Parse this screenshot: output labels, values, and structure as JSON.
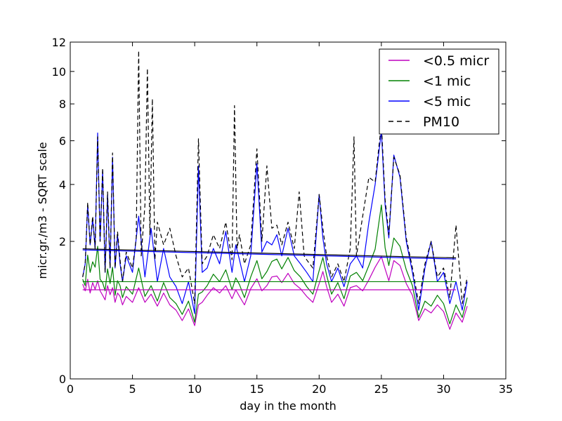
{
  "chart_data": {
    "type": "line",
    "title": "",
    "xlabel": "day in the month",
    "ylabel": "micr.gr./m3 - SQRT scale",
    "xlim": [
      0,
      35
    ],
    "ylim": [
      0,
      12
    ],
    "yscale": "sqrt",
    "grid": false,
    "legend_position": "top-right",
    "x_ticks": [
      0,
      5,
      10,
      15,
      20,
      25,
      30,
      35
    ],
    "y_ticks": [
      0,
      2,
      4,
      6,
      8,
      10,
      12
    ],
    "series": [
      {
        "name": "<0.5 micr",
        "color": "#bf00bf",
        "dash": "solid",
        "x": [
          1.0,
          1.2,
          1.4,
          1.6,
          1.8,
          2.0,
          2.2,
          2.4,
          2.6,
          2.8,
          3.0,
          3.2,
          3.4,
          3.6,
          3.8,
          4.0,
          4.2,
          4.5,
          5.0,
          5.5,
          6.0,
          6.5,
          7.0,
          7.5,
          8.0,
          8.5,
          9.0,
          9.5,
          10.0,
          10.3,
          10.6,
          11.0,
          11.5,
          12.0,
          12.5,
          13.0,
          13.3,
          13.6,
          14.0,
          14.5,
          15.0,
          15.4,
          15.8,
          16.2,
          16.6,
          17.0,
          17.5,
          18.0,
          18.5,
          19.0,
          19.5,
          20.0,
          20.3,
          20.6,
          21.0,
          21.5,
          22.0,
          22.5,
          23.0,
          23.5,
          24.0,
          24.5,
          25.0,
          25.3,
          25.6,
          26.0,
          26.5,
          27.0,
          27.5,
          28.0,
          28.5,
          29.0,
          29.5,
          30.0,
          30.5,
          31.0,
          31.5,
          31.9
        ],
        "y": [
          0.95,
          0.82,
          1.05,
          0.78,
          0.98,
          0.85,
          1.02,
          0.82,
          0.74,
          0.66,
          0.92,
          0.75,
          0.88,
          0.62,
          0.78,
          0.72,
          0.58,
          0.72,
          0.62,
          0.88,
          0.62,
          0.76,
          0.56,
          0.78,
          0.58,
          0.5,
          0.36,
          0.52,
          0.3,
          0.58,
          0.62,
          0.74,
          0.88,
          0.78,
          0.92,
          0.68,
          0.84,
          0.72,
          0.58,
          0.86,
          1.06,
          0.82,
          0.92,
          1.1,
          1.12,
          0.98,
          1.18,
          0.96,
          0.86,
          0.72,
          0.62,
          0.96,
          1.22,
          0.9,
          0.62,
          0.76,
          0.56,
          0.88,
          0.92,
          0.82,
          1.04,
          1.32,
          1.58,
          1.28,
          1.02,
          1.48,
          1.36,
          0.96,
          0.74,
          0.36,
          0.52,
          0.46,
          0.58,
          0.48,
          0.26,
          0.46,
          0.34,
          0.56
        ]
      },
      {
        "name": "<1 mic",
        "color": "#008000",
        "dash": "solid",
        "x": [
          1.0,
          1.2,
          1.4,
          1.6,
          1.8,
          2.0,
          2.2,
          2.4,
          2.6,
          2.8,
          3.0,
          3.2,
          3.4,
          3.6,
          3.8,
          4.0,
          4.2,
          4.5,
          5.0,
          5.5,
          6.0,
          6.5,
          7.0,
          7.5,
          8.0,
          8.5,
          9.0,
          9.5,
          10.0,
          10.3,
          10.6,
          11.0,
          11.5,
          12.0,
          12.5,
          13.0,
          13.3,
          13.6,
          14.0,
          14.5,
          15.0,
          15.4,
          15.8,
          16.2,
          16.6,
          17.0,
          17.5,
          18.0,
          18.5,
          19.0,
          19.5,
          20.0,
          20.3,
          20.6,
          21.0,
          21.5,
          22.0,
          22.5,
          23.0,
          23.5,
          24.0,
          24.5,
          25.0,
          25.3,
          25.6,
          26.0,
          26.5,
          27.0,
          27.5,
          28.0,
          28.5,
          29.0,
          29.5,
          30.0,
          30.5,
          31.0,
          31.5,
          31.9
        ],
        "y": [
          1.05,
          0.92,
          1.62,
          1.2,
          1.45,
          1.32,
          1.86,
          1.05,
          0.98,
          0.82,
          1.28,
          0.96,
          1.32,
          0.74,
          1.02,
          0.92,
          0.7,
          0.9,
          0.76,
          1.3,
          0.72,
          0.92,
          0.64,
          0.98,
          0.7,
          0.6,
          0.44,
          0.64,
          0.34,
          0.76,
          0.8,
          0.92,
          1.16,
          1.0,
          1.26,
          0.84,
          1.08,
          0.94,
          0.7,
          1.1,
          1.48,
          1.06,
          1.22,
          1.46,
          1.52,
          1.28,
          1.56,
          1.24,
          1.1,
          0.9,
          0.76,
          1.24,
          1.56,
          1.14,
          0.76,
          0.98,
          0.68,
          1.12,
          1.2,
          1.02,
          1.36,
          1.78,
          3.2,
          1.82,
          1.36,
          2.1,
          1.86,
          1.26,
          0.92,
          0.4,
          0.64,
          0.56,
          0.74,
          0.6,
          0.32,
          0.58,
          0.4,
          0.7
        ]
      },
      {
        "name": "<5 mic",
        "color": "#0000ff",
        "dash": "solid",
        "x": [
          1.0,
          1.2,
          1.4,
          1.6,
          1.8,
          2.0,
          2.2,
          2.4,
          2.6,
          2.8,
          3.0,
          3.2,
          3.4,
          3.6,
          3.8,
          4.0,
          4.2,
          4.5,
          5.0,
          5.5,
          6.0,
          6.5,
          7.0,
          7.5,
          8.0,
          8.5,
          9.0,
          9.5,
          10.0,
          10.3,
          10.6,
          11.0,
          11.5,
          12.0,
          12.5,
          13.0,
          13.3,
          13.6,
          14.0,
          14.5,
          15.0,
          15.4,
          15.8,
          16.2,
          16.6,
          17.0,
          17.5,
          18.0,
          18.5,
          19.0,
          19.5,
          20.0,
          20.3,
          20.6,
          21.0,
          21.5,
          22.0,
          22.5,
          23.0,
          23.5,
          24.0,
          24.5,
          25.0,
          25.3,
          25.6,
          26.0,
          26.5,
          27.0,
          27.5,
          28.0,
          28.5,
          29.0,
          29.5,
          30.0,
          30.5,
          31.0,
          31.5,
          31.9
        ],
        "y": [
          1.1,
          1.4,
          3.2,
          1.9,
          2.7,
          1.8,
          6.4,
          2.0,
          4.6,
          1.2,
          3.6,
          1.3,
          5.2,
          1.3,
          2.2,
          1.4,
          1.0,
          1.6,
          1.2,
          2.8,
          1.1,
          2.4,
          1.0,
          1.8,
          1.1,
          0.9,
          0.6,
          1.0,
          0.45,
          4.8,
          1.2,
          1.3,
          1.8,
          1.4,
          2.3,
          1.2,
          1.9,
          1.5,
          1.0,
          1.6,
          4.9,
          1.7,
          2.0,
          1.9,
          2.2,
          1.6,
          2.4,
          1.6,
          1.4,
          1.2,
          1.0,
          3.6,
          2.1,
          1.4,
          1.0,
          1.3,
          0.9,
          1.4,
          1.6,
          1.3,
          2.6,
          4.0,
          6.5,
          3.2,
          2.1,
          5.3,
          4.3,
          2.0,
          1.2,
          0.5,
          1.3,
          2.0,
          1.0,
          1.2,
          0.6,
          1.0,
          0.5,
          1.0
        ]
      },
      {
        "name": "PM10",
        "color": "#000000",
        "dash": "dashed",
        "x": [
          1.0,
          1.2,
          1.4,
          1.6,
          1.8,
          2.0,
          2.2,
          2.4,
          2.6,
          2.8,
          3.0,
          3.2,
          3.4,
          3.6,
          3.8,
          4.0,
          4.2,
          4.5,
          5.0,
          5.3,
          5.5,
          5.7,
          6.0,
          6.2,
          6.4,
          6.6,
          6.8,
          7.0,
          7.5,
          8.0,
          8.5,
          9.0,
          9.5,
          10.0,
          10.3,
          10.6,
          11.0,
          11.5,
          12.0,
          12.5,
          13.0,
          13.2,
          13.4,
          13.6,
          14.0,
          14.5,
          15.0,
          15.4,
          15.8,
          16.2,
          16.6,
          17.0,
          17.5,
          18.0,
          18.4,
          18.8,
          19.0,
          19.5,
          20.0,
          20.3,
          20.6,
          21.0,
          21.5,
          22.0,
          22.5,
          22.8,
          23.0,
          23.5,
          24.0,
          24.5,
          25.0,
          25.3,
          25.6,
          26.0,
          26.5,
          27.0,
          27.5,
          28.0,
          28.5,
          29.0,
          29.5,
          30.0,
          30.5,
          31.0,
          31.5,
          31.9
        ],
        "y": [
          1.1,
          1.4,
          3.3,
          1.9,
          2.8,
          1.8,
          6.2,
          2.0,
          4.7,
          1.2,
          3.7,
          1.3,
          5.4,
          1.3,
          2.3,
          1.5,
          1.0,
          1.7,
          1.3,
          2.1,
          11.4,
          1.6,
          3.2,
          10.2,
          2.2,
          8.3,
          1.5,
          2.6,
          1.9,
          2.4,
          1.6,
          1.1,
          1.3,
          0.6,
          6.1,
          1.4,
          1.6,
          2.2,
          1.8,
          2.6,
          1.5,
          7.9,
          1.8,
          2.2,
          1.4,
          1.9,
          5.6,
          2.0,
          4.8,
          2.4,
          2.5,
          1.9,
          2.6,
          1.8,
          3.7,
          1.6,
          1.5,
          1.3,
          3.6,
          2.4,
          1.6,
          1.1,
          1.4,
          1.0,
          1.8,
          6.2,
          1.6,
          2.8,
          4.3,
          4.1,
          6.9,
          3.4,
          2.2,
          5.2,
          4.4,
          2.1,
          1.3,
          0.6,
          1.4,
          2.0,
          1.1,
          1.3,
          0.7,
          2.5,
          0.6,
          1.1
        ]
      }
    ],
    "overlay_lines": [
      {
        "color": "#bf00bf",
        "x": [
          1.0,
          31.0
        ],
        "y": [
          0.84,
          0.84
        ]
      },
      {
        "color": "#008000",
        "x": [
          1.0,
          31.0
        ],
        "y": [
          1.0,
          1.0
        ]
      },
      {
        "color": "#000000",
        "x": [
          1.0,
          31.0
        ],
        "y": [
          1.79,
          1.55
        ]
      },
      {
        "color": "#0000ff",
        "x": [
          1.0,
          31.0
        ],
        "y": [
          1.76,
          1.52
        ]
      }
    ]
  }
}
